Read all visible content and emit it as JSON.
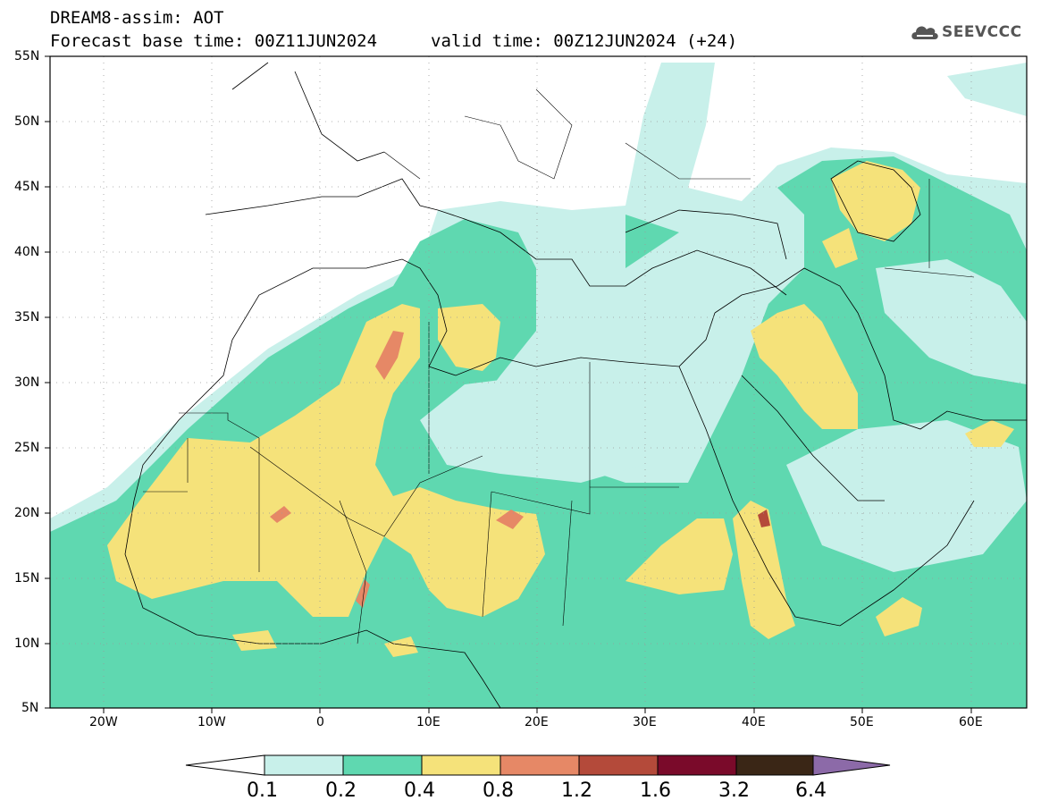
{
  "title": {
    "line1": "DREAM8-assim: AOT",
    "base": "Forecast base time: 00Z11JUN2024",
    "valid": "valid time: 00Z12JUN2024 (+24)"
  },
  "logo": {
    "text": "SEEVCCC",
    "icon": "cloud-icon"
  },
  "map": {
    "projection": "lat-lon",
    "lon_range": [
      -25,
      65
    ],
    "lat_range": [
      5,
      55
    ],
    "lat_labels": [
      "55N",
      "50N",
      "45N",
      "40N",
      "35N",
      "30N",
      "25N",
      "20N",
      "15N",
      "10N",
      "5N"
    ],
    "lon_labels": [
      "20W",
      "10W",
      "0",
      "10E",
      "20E",
      "30E",
      "40E",
      "50E",
      "60E"
    ]
  },
  "colorbar": {
    "levels": [
      "0.1",
      "0.2",
      "0.4",
      "0.8",
      "1.2",
      "1.6",
      "3.2",
      "6.4"
    ],
    "colors": [
      "#ffffff",
      "#c8f0ea",
      "#5fd8b0",
      "#f5e27a",
      "#e68866",
      "#b44a3a",
      "#7a0a2a",
      "#3a2616",
      "#8c6aa8"
    ]
  }
}
